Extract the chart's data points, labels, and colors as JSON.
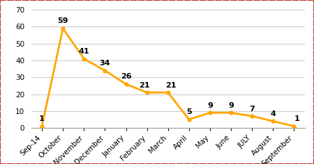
{
  "categories": [
    "Sep-14",
    "October",
    "November",
    "December",
    "January",
    "February",
    "March",
    "April",
    "May",
    "June",
    "JULY",
    "August",
    "September"
  ],
  "values": [
    1,
    59,
    41,
    34,
    26,
    21,
    21,
    5,
    9,
    9,
    7,
    4,
    1
  ],
  "line_color": "#FFA500",
  "marker_color": "#FFA500",
  "ylim": [
    0,
    70
  ],
  "yticks": [
    0,
    10,
    20,
    30,
    40,
    50,
    60,
    70
  ],
  "background_color": "#ffffff",
  "outer_background": "#f5f5f5",
  "grid_color": "#cccccc",
  "border_color": "#c0392b",
  "label_fontsize": 7.5,
  "annotation_fontsize": 8
}
